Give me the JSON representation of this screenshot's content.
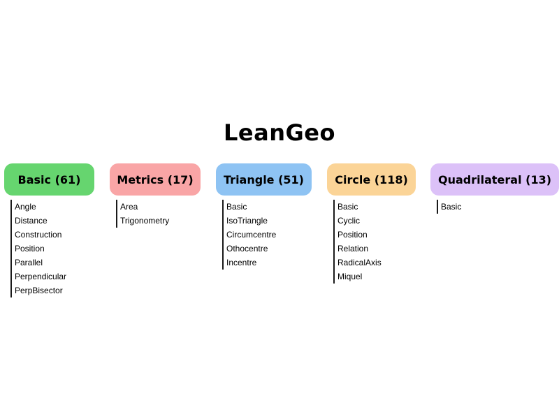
{
  "title": "LeanGeo",
  "colors": {
    "basic": "#66d56f",
    "metrics": "#f9a5a6",
    "triangle": "#8ec3f3",
    "circle": "#fbd497",
    "quadrilateral": "#dcc1f8",
    "connector": "#1a1a1a"
  },
  "categories": [
    {
      "name": "Basic",
      "count": 61,
      "label": "Basic (61)",
      "items": [
        "Angle",
        "Distance",
        "Construction",
        "Position",
        "Parallel",
        "Perpendicular",
        "PerpBisector"
      ]
    },
    {
      "name": "Metrics",
      "count": 17,
      "label": "Metrics (17)",
      "items": [
        "Area",
        "Trigonometry"
      ]
    },
    {
      "name": "Triangle",
      "count": 51,
      "label": "Triangle (51)",
      "items": [
        "Basic",
        "IsoTriangle",
        "Circumcentre",
        "Othocentre",
        "Incentre"
      ]
    },
    {
      "name": "Circle",
      "count": 118,
      "label": "Circle (118)",
      "items": [
        "Basic",
        "Cyclic",
        "Position",
        "Relation",
        "RadicalAxis",
        "Miquel"
      ]
    },
    {
      "name": "Quadrilateral",
      "count": 13,
      "label": "Quadrilateral (13)",
      "items": [
        "Basic"
      ]
    }
  ]
}
